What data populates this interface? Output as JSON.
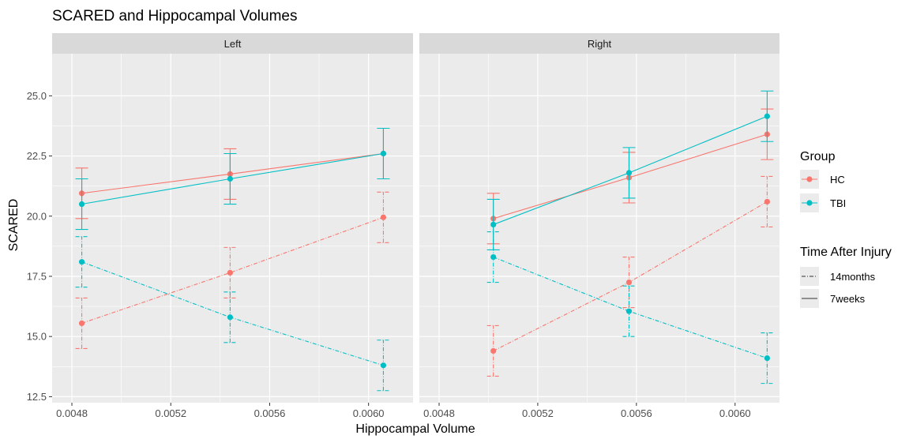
{
  "chart_data": {
    "type": "line",
    "title": "SCARED and Hippocampal Volumes",
    "xlabel": "Hippocampal Volume",
    "ylabel": "SCARED",
    "xlim": [
      0.00472,
      0.00618
    ],
    "ylim": [
      12.25,
      26.75
    ],
    "x_ticks": [
      "0.0048",
      "0.0052",
      "0.0056",
      "0.0060"
    ],
    "x_tick_values": [
      0.0048,
      0.0052,
      0.0056,
      0.006
    ],
    "y_ticks": [
      "12.5",
      "15.0",
      "17.5",
      "20.0",
      "22.5",
      "25.0"
    ],
    "y_tick_values": [
      12.5,
      15.0,
      17.5,
      20.0,
      22.5,
      25.0
    ],
    "grid": true,
    "panels": [
      "Left",
      "Right"
    ],
    "legend": {
      "placement": "right",
      "group_title": "Group",
      "group_items": [
        {
          "label": "HC",
          "color": "#F8766D"
        },
        {
          "label": "TBI",
          "color": "#00BFC4"
        }
      ],
      "time_title": "Time After Injury",
      "time_items": [
        {
          "label": "14months",
          "dash": "dotdash"
        },
        {
          "label": "7weeks",
          "dash": "solid"
        }
      ]
    },
    "series": [
      {
        "panel": "Left",
        "group": "HC",
        "time": "7weeks",
        "x": [
          0.00484,
          0.00544,
          0.00606
        ],
        "y": [
          20.95,
          21.75,
          22.6
        ],
        "err_low": [
          19.9,
          20.7,
          21.55
        ],
        "err_high": [
          22.0,
          22.8,
          23.65
        ]
      },
      {
        "panel": "Left",
        "group": "TBI",
        "time": "7weeks",
        "x": [
          0.00484,
          0.00544,
          0.00606
        ],
        "y": [
          20.5,
          21.55,
          22.6
        ],
        "err_low": [
          19.45,
          20.5,
          21.55
        ],
        "err_high": [
          21.55,
          22.6,
          23.65
        ]
      },
      {
        "panel": "Left",
        "group": "HC",
        "time": "14months",
        "x": [
          0.00484,
          0.00544,
          0.00606
        ],
        "y": [
          15.55,
          17.65,
          19.95
        ],
        "err_low": [
          14.5,
          16.6,
          18.9
        ],
        "err_high": [
          16.6,
          18.7,
          21.0
        ]
      },
      {
        "panel": "Left",
        "group": "TBI",
        "time": "14months",
        "x": [
          0.00484,
          0.00544,
          0.00606
        ],
        "y": [
          18.1,
          15.8,
          13.8
        ],
        "err_low": [
          17.05,
          14.75,
          12.75
        ],
        "err_high": [
          19.15,
          16.85,
          14.85
        ]
      },
      {
        "panel": "Right",
        "group": "HC",
        "time": "7weeks",
        "x": [
          0.00502,
          0.00557,
          0.00613
        ],
        "y": [
          19.9,
          21.6,
          23.4
        ],
        "err_low": [
          18.85,
          20.55,
          22.35
        ],
        "err_high": [
          20.95,
          22.65,
          24.45
        ]
      },
      {
        "panel": "Right",
        "group": "TBI",
        "time": "7weeks",
        "x": [
          0.00502,
          0.00557,
          0.00613
        ],
        "y": [
          19.65,
          21.8,
          24.15
        ],
        "err_low": [
          18.6,
          20.75,
          23.1
        ],
        "err_high": [
          20.7,
          22.85,
          25.2
        ]
      },
      {
        "panel": "Right",
        "group": "HC",
        "time": "14months",
        "x": [
          0.00502,
          0.00557,
          0.00613
        ],
        "y": [
          14.4,
          17.25,
          20.6
        ],
        "err_low": [
          13.35,
          16.2,
          19.55
        ],
        "err_high": [
          15.45,
          18.3,
          21.65
        ]
      },
      {
        "panel": "Right",
        "group": "TBI",
        "time": "14months",
        "x": [
          0.00502,
          0.00557,
          0.00613
        ],
        "y": [
          18.3,
          16.05,
          14.1
        ],
        "err_low": [
          17.25,
          15.0,
          13.05
        ],
        "err_high": [
          19.35,
          17.1,
          15.15
        ]
      }
    ]
  }
}
